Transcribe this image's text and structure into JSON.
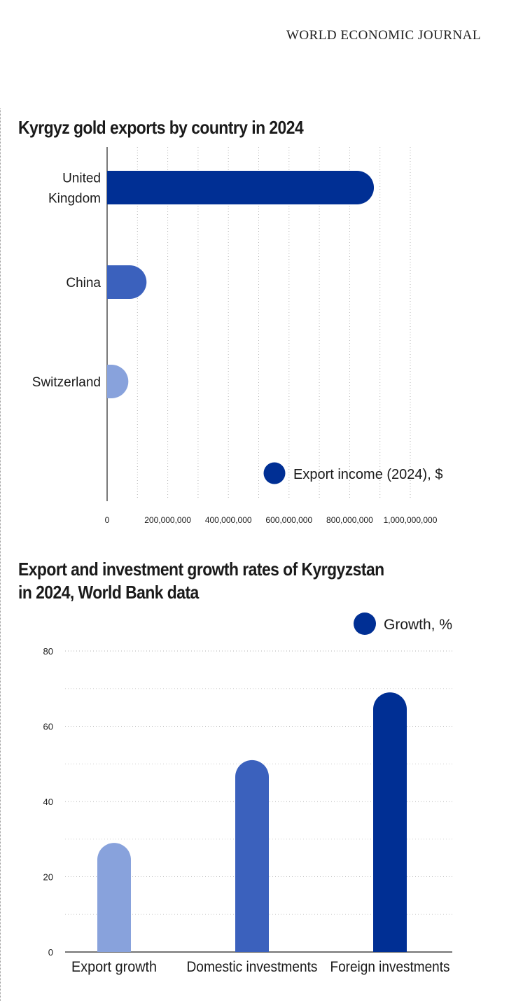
{
  "masthead": "WORLD ECONOMIC JOURNAL",
  "colors": {
    "dark_blue": "#002f94",
    "mid_blue": "#3b61bd",
    "light_blue": "#88a2dc",
    "grid": "#b3b3b3"
  },
  "chart_data": [
    {
      "type": "bar",
      "orientation": "horizontal",
      "title": "Kyrgyz gold exports by country in 2024",
      "categories": [
        "United\nKingdom",
        "China",
        "Switzerland"
      ],
      "series": [
        {
          "name": "Export income (2024), $",
          "values": [
            880000000,
            130000000,
            70000000
          ]
        }
      ],
      "bar_colors": [
        "#002f94",
        "#3b61bd",
        "#88a2dc"
      ],
      "xlim": [
        0,
        1000000000
      ],
      "xticks": [
        0,
        200000000,
        400000000,
        600000000,
        800000000,
        1000000000
      ],
      "xtick_labels": [
        "0",
        "200,000,000",
        "400,000,000",
        "600,000,000",
        "800,000,000",
        "1,000,000,000"
      ],
      "grid": true,
      "legend": "bottom-right"
    },
    {
      "type": "bar",
      "orientation": "vertical",
      "title": "Export and investment growth rates of Kyrgyzstan\n in 2024, World Bank data",
      "categories": [
        "Export growth",
        "Domestic investments",
        "Foreign investments"
      ],
      "series": [
        {
          "name": "Growth, %",
          "values": [
            29,
            51,
            69
          ]
        }
      ],
      "bar_colors": [
        "#88a2dc",
        "#3b61bd",
        "#002f94"
      ],
      "ylim": [
        0,
        80
      ],
      "yticks": [
        0,
        20,
        40,
        60,
        80
      ],
      "ytick_labels": [
        "0",
        "20",
        "40",
        "60",
        "80"
      ],
      "grid": true,
      "legend": "top-right"
    }
  ]
}
